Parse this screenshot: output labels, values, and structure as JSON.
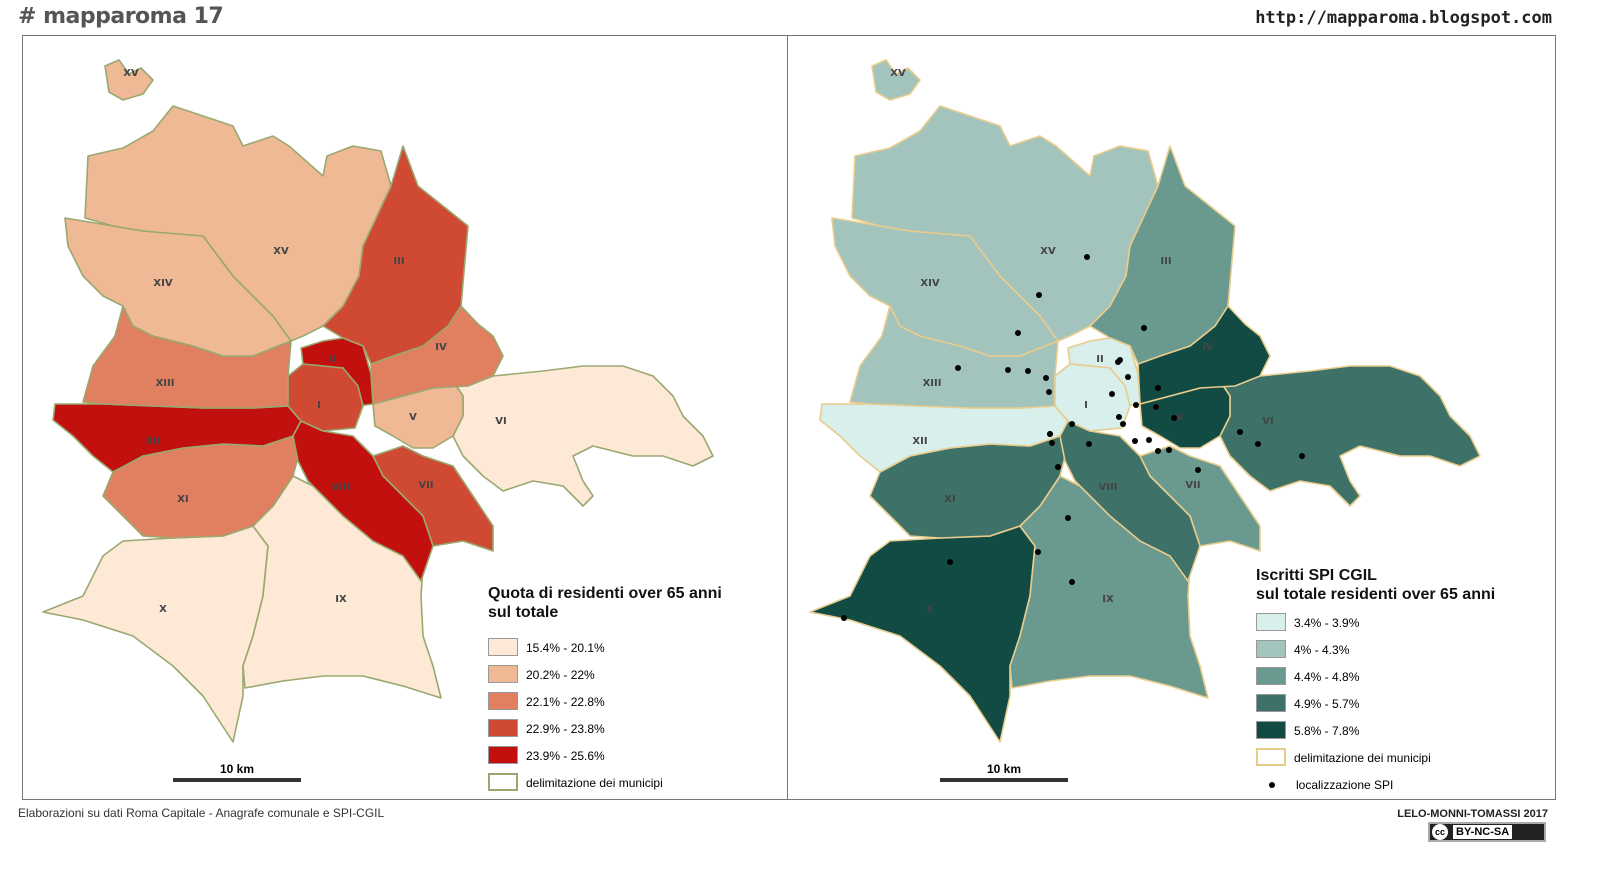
{
  "header": {
    "title": "# mapparoma 17",
    "url": "http://mapparoma.blogspot.com"
  },
  "footer": {
    "source": "Elaborazioni su dati Roma Capitale  - Anagrafe comunale e SPI-CGIL",
    "credit": "LELO-MONNI-TOMASSI 2017",
    "license_icon": "cc",
    "license": "BY-NC-SA"
  },
  "municipi": [
    "I",
    "II",
    "III",
    "IV",
    "V",
    "VI",
    "VII",
    "VIII",
    "IX",
    "X",
    "XI",
    "XII",
    "XIII",
    "XIV",
    "XV"
  ],
  "map_left": {
    "legend_title_line1": "Quota di residenti over 65 anni",
    "legend_title_line2": "sul totale",
    "classes": [
      {
        "label": "15.4% - 20.1%",
        "color": "#fde9d5"
      },
      {
        "label": "20.2% - 22%",
        "color": "#f0b996"
      },
      {
        "label": "22.1% - 22.8%",
        "color": "#e08060"
      },
      {
        "label": "22.9% - 23.8%",
        "color": "#d04a33"
      },
      {
        "label": "23.9% - 25.6%",
        "color": "#c2100f"
      }
    ],
    "boundary_label": "delimitazione dei municipi",
    "boundary_color": "#9aa870",
    "scale_label": "10 km",
    "assignment": {
      "I": 4,
      "II": 5,
      "III": 4,
      "IV": 3,
      "V": 2,
      "VI": 1,
      "VII": 4,
      "VIII": 5,
      "IX": 1,
      "X": 1,
      "XI": 3,
      "XII": 5,
      "XIII": 3,
      "XIV": 2,
      "XV": 2
    }
  },
  "map_right": {
    "legend_title_line1": "Iscritti SPI CGIL",
    "legend_title_line2": "sul totale residenti over 65 anni",
    "classes": [
      {
        "label": "3.4% - 3.9%",
        "color": "#d8efeb"
      },
      {
        "label": "4% - 4.3%",
        "color": "#a2c4bd"
      },
      {
        "label": "4.4% - 4.8%",
        "color": "#6a9990"
      },
      {
        "label": "4.9% - 5.7%",
        "color": "#3e7168"
      },
      {
        "label": "5.8% - 7.8%",
        "color": "#124b44"
      }
    ],
    "boundary_label": "delimitazione dei municipi",
    "boundary_color": "#e8cc8c",
    "points_label": "localizzazione SPI",
    "scale_label": "10 km",
    "assignment": {
      "I": 1,
      "II": 1,
      "III": 3,
      "IV": 5,
      "V": 5,
      "VI": 4,
      "VII": 3,
      "VIII": 4,
      "IX": 3,
      "X": 5,
      "XI": 4,
      "XII": 1,
      "XIII": 2,
      "XIV": 2,
      "XV": 2
    }
  }
}
